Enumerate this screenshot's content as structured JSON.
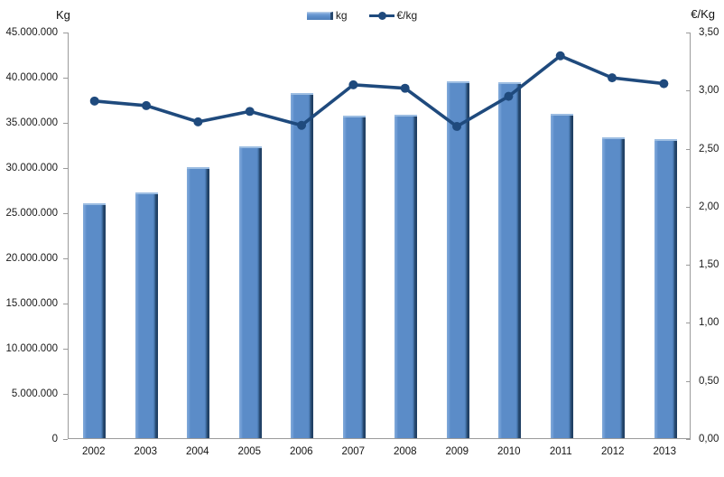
{
  "chart_data": {
    "type": "bar",
    "subtype": "bar+line dual axis",
    "categories": [
      "2002",
      "2003",
      "2004",
      "2005",
      "2006",
      "2007",
      "2008",
      "2009",
      "2010",
      "2011",
      "2012",
      "2013"
    ],
    "series": [
      {
        "name": "kg",
        "type": "bar",
        "axis": "left",
        "values": [
          26000000,
          27200000,
          30000000,
          32300000,
          38200000,
          35700000,
          35800000,
          39500000,
          39400000,
          35900000,
          33300000,
          33100000
        ]
      },
      {
        "name": "€/kg",
        "type": "line",
        "axis": "right",
        "values": [
          2.91,
          2.87,
          2.73,
          2.82,
          2.7,
          3.05,
          3.02,
          2.69,
          2.95,
          3.3,
          3.11,
          3.06
        ]
      }
    ],
    "left_axis": {
      "title": "Kg",
      "min": 0,
      "max": 45000000,
      "step": 5000000,
      "tick_labels": [
        "45.000.000",
        "40.000.000",
        "35.000.000",
        "30.000.000",
        "25.000.000",
        "20.000.000",
        "15.000.000",
        "10.000.000",
        "5.000.000",
        "0"
      ]
    },
    "right_axis": {
      "title": "€/Kg",
      "min": 0,
      "max": 3.5,
      "step": 0.5,
      "tick_labels": [
        "3,50",
        "3,00",
        "2,50",
        "2,00",
        "1,50",
        "1,00",
        "0,50",
        "0,00"
      ]
    },
    "legend": [
      {
        "label": "kg",
        "marker": "bar-swatch"
      },
      {
        "label": "€/kg",
        "marker": "line-swatch"
      }
    ],
    "legend_position": "top-center",
    "grid": false,
    "colors": {
      "bar_fill": "#5b8cc8",
      "bar_highlight": "#82aad8",
      "bar_shadow": "#27496f",
      "line": "#1f4a7d",
      "axis": "#9b9b9b",
      "text": "#1a1a1a"
    }
  }
}
